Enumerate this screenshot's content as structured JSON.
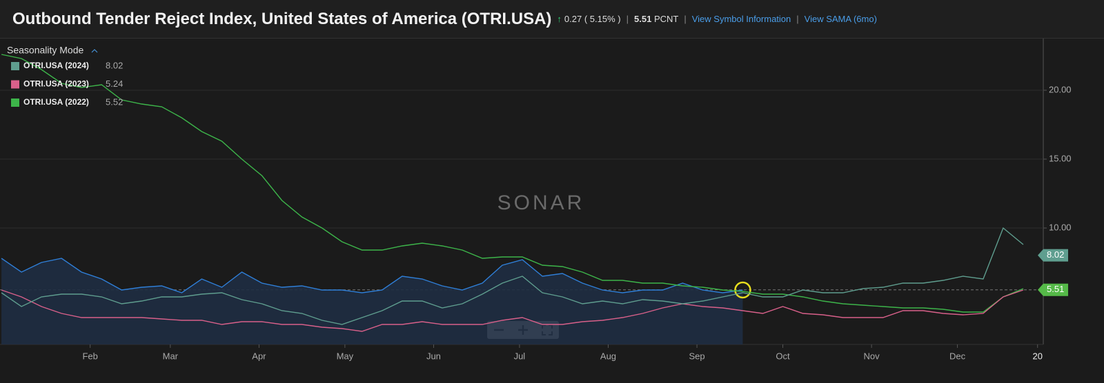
{
  "header": {
    "title": "Outbound Tender Reject Index, United States of America (OTRI.USA)",
    "change": "0.27",
    "change_pct": "( 5.15% )",
    "last": "5.51",
    "unit": "PCNT",
    "link1": "View Symbol Information",
    "link2": "View SAMA (6mo)"
  },
  "chart_data": {
    "type": "line",
    "watermark": "SONAR",
    "legend_title": "Seasonality Mode",
    "legend": "top-left",
    "grid": true,
    "x": [
      0,
      7,
      14,
      21,
      28,
      35,
      42,
      49,
      56,
      63,
      70,
      77,
      84,
      91,
      98,
      105,
      112,
      119,
      126,
      133,
      140,
      147,
      154,
      161,
      168,
      175,
      182,
      189,
      196,
      203,
      210,
      217,
      224,
      231,
      238,
      245,
      252,
      259,
      266,
      273,
      280,
      287,
      294,
      301,
      308,
      315,
      322,
      329,
      336,
      343,
      350,
      357
    ],
    "xlim": [
      -0.5,
      364
    ],
    "xticks": [
      {
        "value": 31,
        "label": "Feb"
      },
      {
        "value": 59,
        "label": "Mar"
      },
      {
        "value": 90,
        "label": "Apr"
      },
      {
        "value": 120,
        "label": "May"
      },
      {
        "value": 151,
        "label": "Jun"
      },
      {
        "value": 181,
        "label": "Jul"
      },
      {
        "value": 212,
        "label": "Aug"
      },
      {
        "value": 243,
        "label": "Sep"
      },
      {
        "value": 273,
        "label": "Oct"
      },
      {
        "value": 304,
        "label": "Nov"
      },
      {
        "value": 334,
        "label": "Dec"
      },
      {
        "value": 362,
        "label": "20"
      }
    ],
    "ylim": [
      1.55,
      23.75
    ],
    "yticks": [
      {
        "value": 10,
        "label": "10.00"
      },
      {
        "value": 15,
        "label": "15.00"
      },
      {
        "value": 20,
        "label": "20.00"
      }
    ],
    "series": [
      {
        "name": "OTRI.USA (2024)",
        "legend_value": 8.02,
        "color": "#5f9e8f",
        "values": [
          5.3,
          4.3,
          5.0,
          5.2,
          5.2,
          5.0,
          4.5,
          4.7,
          5.0,
          5.0,
          5.2,
          5.3,
          4.8,
          4.5,
          4.0,
          3.8,
          3.3,
          3.0,
          3.5,
          4.0,
          4.7,
          4.7,
          4.2,
          4.5,
          5.2,
          6.0,
          6.5,
          5.3,
          5.0,
          4.5,
          4.7,
          4.5,
          4.8,
          4.7,
          4.5,
          4.7,
          5.0,
          5.3,
          5.0,
          5.0,
          5.5,
          5.3,
          5.3,
          5.6,
          5.7,
          6.0,
          6.0,
          6.2,
          6.5,
          6.3,
          10.0,
          8.8
        ]
      },
      {
        "name": "OTRI.USA (2023)",
        "legend_value": 5.24,
        "color": "#d9608a",
        "values": [
          5.5,
          5.0,
          4.3,
          3.8,
          3.5,
          3.5,
          3.5,
          3.5,
          3.4,
          3.3,
          3.3,
          3.0,
          3.2,
          3.2,
          3.0,
          3.0,
          2.8,
          2.7,
          2.5,
          3.0,
          3.0,
          3.2,
          3.0,
          3.0,
          3.0,
          3.3,
          3.5,
          3.0,
          3.0,
          3.2,
          3.3,
          3.5,
          3.8,
          4.2,
          4.5,
          4.3,
          4.2,
          4.0,
          3.8,
          4.3,
          3.8,
          3.7,
          3.5,
          3.5,
          3.5,
          4.0,
          4.0,
          3.8,
          3.7,
          3.8,
          5.0,
          5.5
        ]
      },
      {
        "name": "OTRI.USA (2022)",
        "legend_value": 5.52,
        "color": "#3db54a",
        "values": [
          22.6,
          22.3,
          21.5,
          20.5,
          20.2,
          20.4,
          19.3,
          19.0,
          18.8,
          18.0,
          17.0,
          16.3,
          15.0,
          13.8,
          12.0,
          10.8,
          10.0,
          9.0,
          8.4,
          8.4,
          8.7,
          8.9,
          8.7,
          8.4,
          7.8,
          7.9,
          7.9,
          7.3,
          7.2,
          6.8,
          6.2,
          6.2,
          6.0,
          6.0,
          5.8,
          5.7,
          5.5,
          5.4,
          5.2,
          5.2,
          5.0,
          4.7,
          4.5,
          4.4,
          4.3,
          4.2,
          4.2,
          4.1,
          3.9,
          3.9,
          5.0,
          5.6
        ]
      },
      {
        "color": "#2f7fd8",
        "area": true,
        "values": [
          7.8,
          6.8,
          7.5,
          7.8,
          6.8,
          6.3,
          5.5,
          5.7,
          5.8,
          5.3,
          6.3,
          5.7,
          6.8,
          6.0,
          5.7,
          5.8,
          5.5,
          5.5,
          5.3,
          5.5,
          6.5,
          6.3,
          5.8,
          5.5,
          6.0,
          7.3,
          7.7,
          6.5,
          6.7,
          6.0,
          5.5,
          5.3,
          5.5,
          5.5,
          6.0,
          5.5,
          5.3,
          5.5,
          null,
          null,
          null,
          null,
          null,
          null,
          null,
          null,
          null,
          null,
          null,
          null,
          null,
          null
        ]
      }
    ],
    "last_tags": [
      {
        "value": 8.02,
        "color": "#5f9e8f"
      },
      {
        "value": 5.51,
        "color": "#55b948"
      }
    ]
  }
}
